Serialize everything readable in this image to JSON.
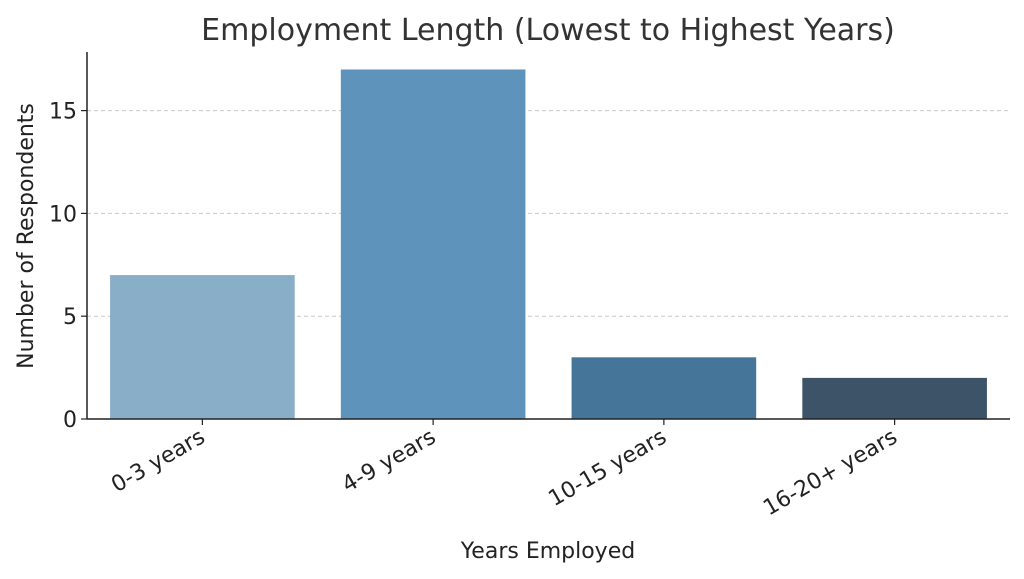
{
  "chart_data": {
    "type": "bar",
    "title": "Employment Length (Lowest to Highest Years)",
    "xlabel": "Years Employed",
    "ylabel": "Number of Respondents",
    "categories": [
      "0-3 years",
      "4-9 years",
      "10-15 years",
      "16-20+ years"
    ],
    "values": [
      7,
      17,
      3,
      2
    ],
    "ylim": [
      0,
      17.85
    ],
    "yticks": [
      0,
      5,
      10,
      15
    ],
    "grid": "y",
    "colors": [
      "#89aec8",
      "#5e94bb",
      "#457599",
      "#3d5468"
    ]
  }
}
